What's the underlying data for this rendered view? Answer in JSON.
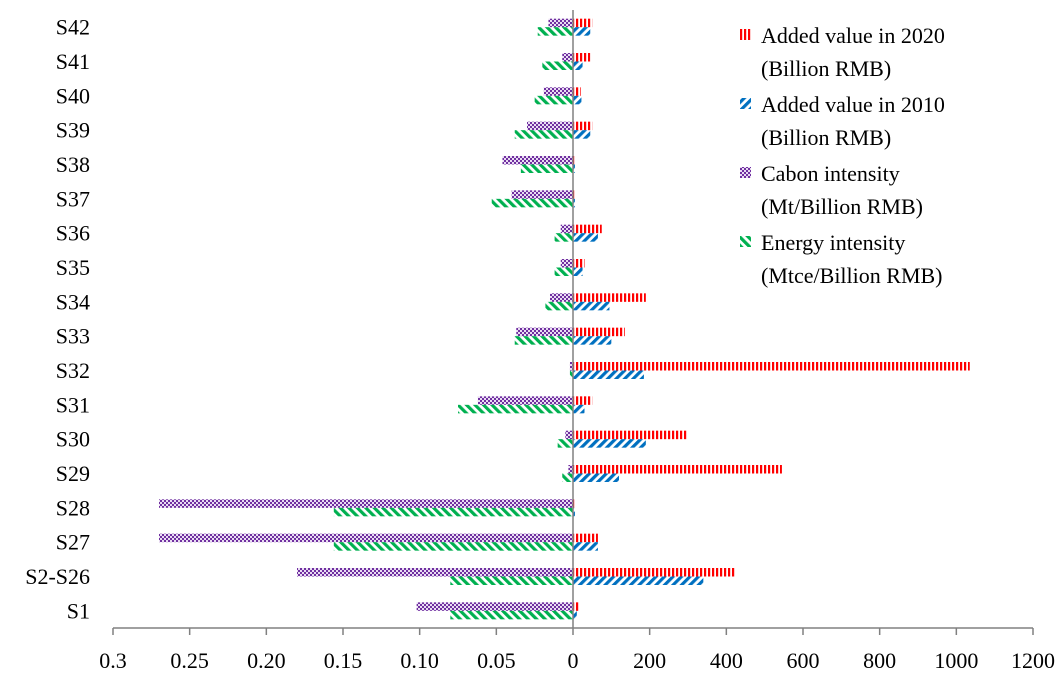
{
  "chart_data": {
    "type": "bar",
    "orientation": "horizontal",
    "categories": [
      "S1",
      "S2-S26",
      "S27",
      "S28",
      "S29",
      "S30",
      "S31",
      "S32",
      "S33",
      "S34",
      "S35",
      "S36",
      "S37",
      "S38",
      "S39",
      "S40",
      "S41",
      "S42"
    ],
    "left_axis": {
      "ticks": [
        "0.3",
        "0.25",
        "0.20",
        "0.15",
        "0.10",
        "0.05",
        "0"
      ],
      "range": [
        0.3,
        0
      ],
      "series": [
        {
          "name": "Cabon intensity (Mt/Billion RMB)",
          "color": "#7030a0",
          "pattern": "dots",
          "values": [
            0.102,
            0.18,
            0.27,
            0.27,
            0.003,
            0.005,
            0.062,
            0.002,
            0.037,
            0.015,
            0.008,
            0.008,
            0.04,
            0.046,
            0.03,
            0.019,
            0.007,
            0.016
          ]
        },
        {
          "name": "Energy intensity (Mtce/Billion RMB)",
          "color": "#00b050",
          "pattern": "diagonal",
          "values": [
            0.08,
            0.08,
            0.156,
            0.156,
            0.007,
            0.01,
            0.075,
            0.002,
            0.038,
            0.018,
            0.012,
            0.012,
            0.053,
            0.034,
            0.038,
            0.025,
            0.02,
            0.023
          ]
        }
      ]
    },
    "right_axis": {
      "ticks": [
        "0",
        "200",
        "400",
        "600",
        "800",
        "1000",
        "1200"
      ],
      "range": [
        0,
        1200
      ],
      "series": [
        {
          "name": "Added value in 2020 (Billion RMB)",
          "color": "#ff0000",
          "pattern": "vertical",
          "values": [
            15,
            425,
            65,
            5,
            545,
            300,
            50,
            1035,
            135,
            190,
            30,
            75,
            5,
            5,
            50,
            20,
            45,
            50
          ]
        },
        {
          "name": "Added value in 2010 (Billion RMB)",
          "color": "#0070c0",
          "pattern": "diagonal",
          "values": [
            10,
            340,
            65,
            5,
            120,
            190,
            30,
            185,
            100,
            95,
            25,
            65,
            5,
            5,
            45,
            22,
            25,
            45
          ]
        }
      ]
    },
    "legend": {
      "position": "top-right",
      "entries": [
        {
          "line1": "Added value in 2020",
          "line2": "(Billion RMB)",
          "color": "#ff0000",
          "pattern": "vertical"
        },
        {
          "line1": "Added value in 2010",
          "line2": "(Billion RMB)",
          "color": "#0070c0",
          "pattern": "diagonal"
        },
        {
          "line1": "Cabon intensity",
          "line2": "(Mt/Billion RMB)",
          "color": "#7030a0",
          "pattern": "dots"
        },
        {
          "line1": "Energy intensity",
          "line2": "(Mtce/Billion RMB)",
          "color": "#00b050",
          "pattern": "diagonal"
        }
      ]
    },
    "grid": false
  }
}
